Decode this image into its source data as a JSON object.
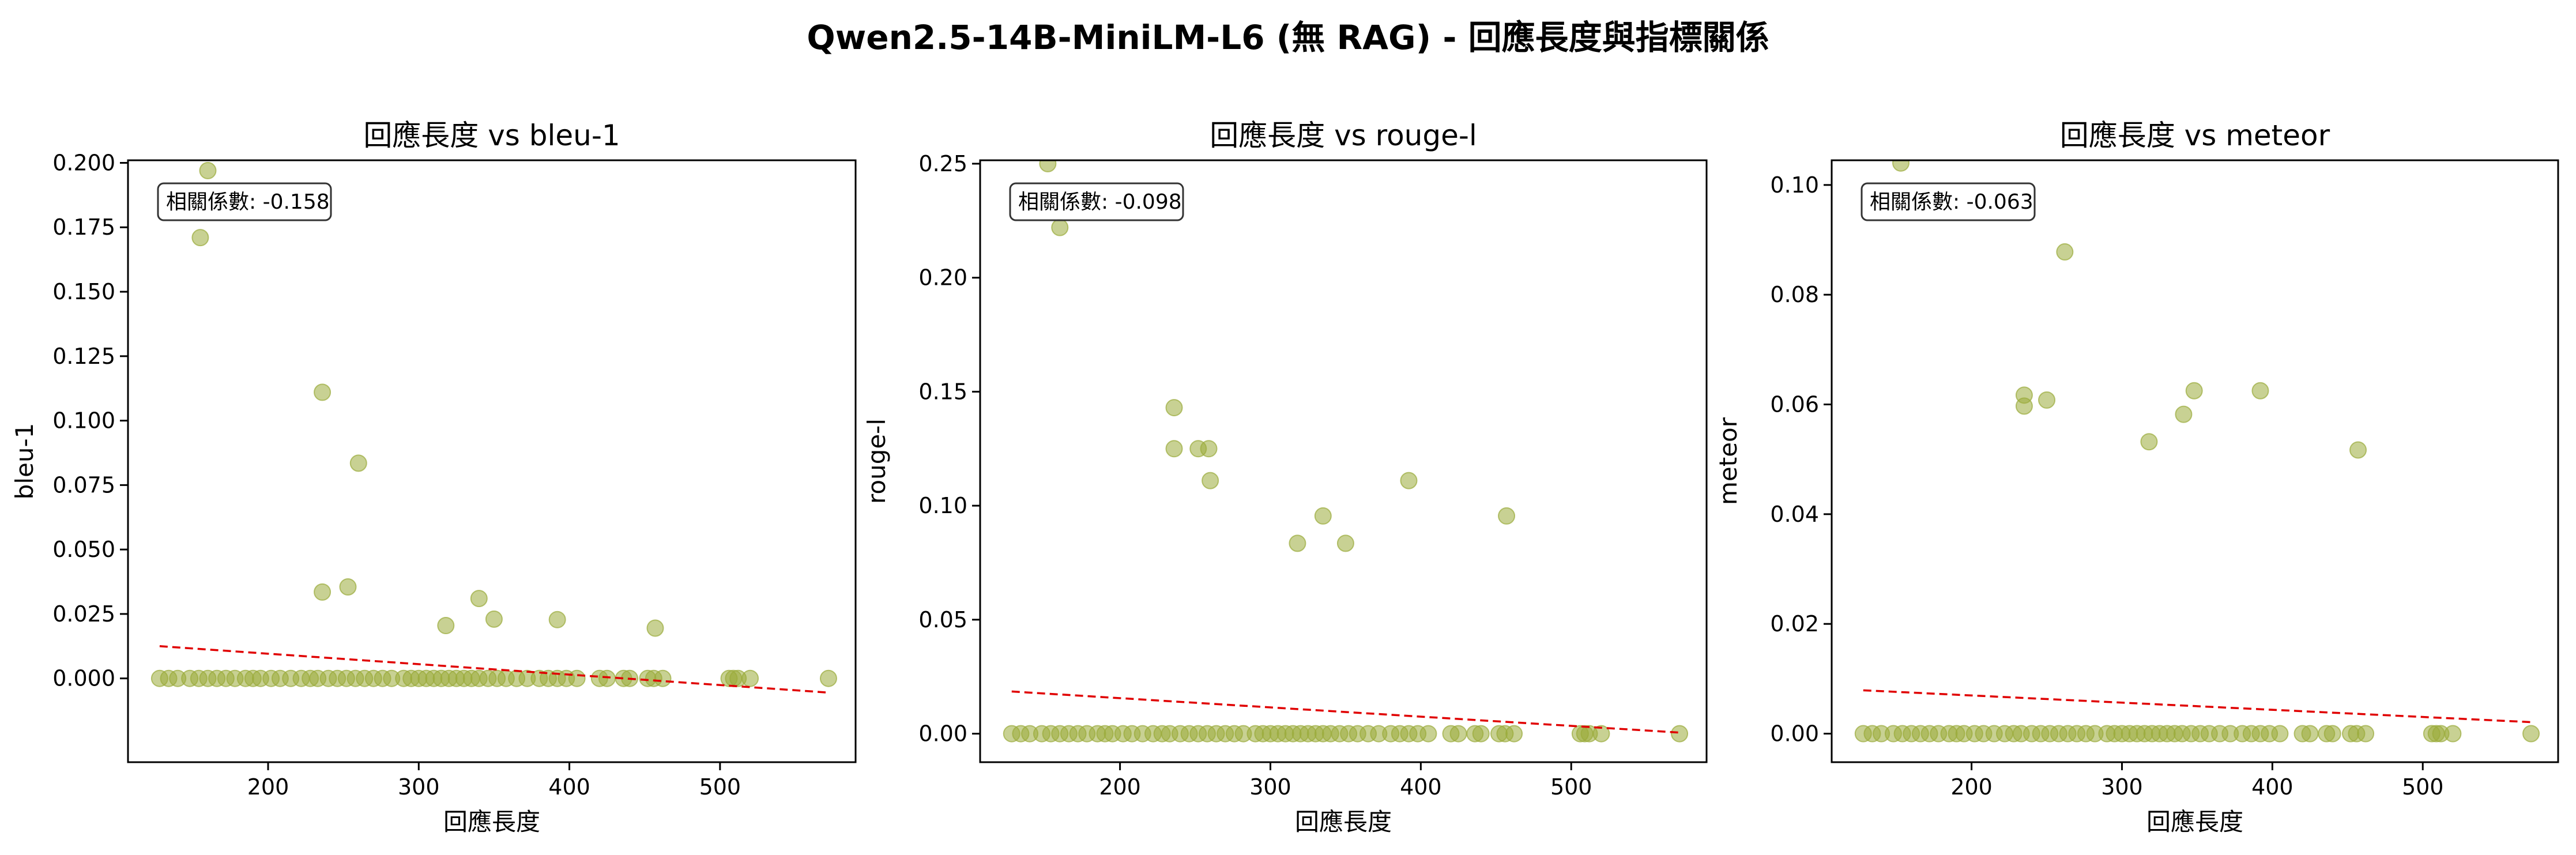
{
  "suptitle": "Qwen2.5-14B-MiniLM-L6 (無 RAG) - 回應長度與指標關係",
  "colors": {
    "points": "#9aab3a",
    "trend": "#e00000",
    "frame": "#000000"
  },
  "chart_data": [
    {
      "type": "scatter",
      "title": "回應長度 vs bleu-1",
      "xlabel": "回應長度",
      "ylabel": "bleu-1",
      "xlim": [
        107,
        590
      ],
      "ylim": [
        -0.0325,
        0.201
      ],
      "xticks": [
        200,
        300,
        400,
        500
      ],
      "yticks": [
        0.0,
        0.025,
        0.05,
        0.075,
        0.1,
        0.125,
        0.15,
        0.175,
        0.2
      ],
      "ytick_labels": [
        "0.000",
        "0.025",
        "0.050",
        "0.075",
        "0.100",
        "0.125",
        "0.150",
        "0.175",
        "0.200"
      ],
      "annotation": "相關係數: -0.158",
      "trend": {
        "x": [
          128,
          572
        ],
        "y": [
          0.0125,
          -0.0055
        ]
      },
      "points": [
        [
          128,
          0
        ],
        [
          134,
          0
        ],
        [
          140,
          0
        ],
        [
          148,
          0
        ],
        [
          154,
          0
        ],
        [
          160,
          0
        ],
        [
          166,
          0
        ],
        [
          172,
          0
        ],
        [
          178,
          0
        ],
        [
          185,
          0
        ],
        [
          190,
          0
        ],
        [
          195,
          0
        ],
        [
          202,
          0
        ],
        [
          208,
          0
        ],
        [
          215,
          0
        ],
        [
          222,
          0
        ],
        [
          228,
          0
        ],
        [
          233,
          0
        ],
        [
          240,
          0
        ],
        [
          246,
          0
        ],
        [
          252,
          0
        ],
        [
          258,
          0
        ],
        [
          264,
          0
        ],
        [
          270,
          0
        ],
        [
          276,
          0
        ],
        [
          282,
          0
        ],
        [
          290,
          0
        ],
        [
          295,
          0
        ],
        [
          300,
          0
        ],
        [
          305,
          0
        ],
        [
          310,
          0
        ],
        [
          315,
          0
        ],
        [
          320,
          0
        ],
        [
          325,
          0
        ],
        [
          330,
          0
        ],
        [
          335,
          0
        ],
        [
          340,
          0
        ],
        [
          346,
          0
        ],
        [
          352,
          0
        ],
        [
          358,
          0
        ],
        [
          365,
          0
        ],
        [
          372,
          0
        ],
        [
          380,
          0
        ],
        [
          386,
          0
        ],
        [
          392,
          0
        ],
        [
          398,
          0
        ],
        [
          405,
          0
        ],
        [
          420,
          0
        ],
        [
          425,
          0
        ],
        [
          436,
          0
        ],
        [
          440,
          0
        ],
        [
          452,
          0
        ],
        [
          456,
          0
        ],
        [
          462,
          0
        ],
        [
          506,
          0
        ],
        [
          509,
          0
        ],
        [
          512,
          0
        ],
        [
          520,
          0
        ],
        [
          572,
          0
        ],
        [
          155,
          0.171
        ],
        [
          160,
          0.197
        ],
        [
          236,
          0.111
        ],
        [
          236,
          0.0335
        ],
        [
          253,
          0.0355
        ],
        [
          260,
          0.0835
        ],
        [
          318,
          0.0205
        ],
        [
          340,
          0.031
        ],
        [
          350,
          0.023
        ],
        [
          392,
          0.0228
        ],
        [
          457,
          0.0195
        ]
      ]
    },
    {
      "type": "scatter",
      "title": "回應長度 vs rouge-l",
      "xlabel": "回應長度",
      "ylabel": "rouge-l",
      "xlim": [
        107,
        590
      ],
      "ylim": [
        -0.0125,
        0.2515
      ],
      "xticks": [
        200,
        300,
        400,
        500
      ],
      "yticks": [
        0.0,
        0.05,
        0.1,
        0.15,
        0.2,
        0.25
      ],
      "ytick_labels": [
        "0.00",
        "0.05",
        "0.10",
        "0.15",
        "0.20",
        "0.25"
      ],
      "annotation": "相關係數: -0.098",
      "trend": {
        "x": [
          128,
          572
        ],
        "y": [
          0.0185,
          0.0005
        ]
      },
      "points": [
        [
          128,
          0
        ],
        [
          134,
          0
        ],
        [
          140,
          0
        ],
        [
          148,
          0
        ],
        [
          154,
          0
        ],
        [
          160,
          0
        ],
        [
          166,
          0
        ],
        [
          172,
          0
        ],
        [
          178,
          0
        ],
        [
          185,
          0
        ],
        [
          190,
          0
        ],
        [
          195,
          0
        ],
        [
          202,
          0
        ],
        [
          208,
          0
        ],
        [
          215,
          0
        ],
        [
          222,
          0
        ],
        [
          228,
          0
        ],
        [
          233,
          0
        ],
        [
          240,
          0
        ],
        [
          246,
          0
        ],
        [
          252,
          0
        ],
        [
          258,
          0
        ],
        [
          264,
          0
        ],
        [
          270,
          0
        ],
        [
          276,
          0
        ],
        [
          282,
          0
        ],
        [
          290,
          0
        ],
        [
          295,
          0
        ],
        [
          300,
          0
        ],
        [
          305,
          0
        ],
        [
          310,
          0
        ],
        [
          315,
          0
        ],
        [
          320,
          0
        ],
        [
          325,
          0
        ],
        [
          330,
          0
        ],
        [
          335,
          0
        ],
        [
          340,
          0
        ],
        [
          346,
          0
        ],
        [
          352,
          0
        ],
        [
          358,
          0
        ],
        [
          365,
          0
        ],
        [
          372,
          0
        ],
        [
          380,
          0
        ],
        [
          386,
          0
        ],
        [
          392,
          0
        ],
        [
          398,
          0
        ],
        [
          405,
          0
        ],
        [
          420,
          0
        ],
        [
          425,
          0
        ],
        [
          436,
          0
        ],
        [
          440,
          0
        ],
        [
          452,
          0
        ],
        [
          456,
          0
        ],
        [
          462,
          0
        ],
        [
          506,
          0
        ],
        [
          509,
          0
        ],
        [
          512,
          0
        ],
        [
          520,
          0
        ],
        [
          572,
          0
        ],
        [
          152,
          0.25
        ],
        [
          160,
          0.222
        ],
        [
          236,
          0.143
        ],
        [
          236,
          0.125
        ],
        [
          252,
          0.125
        ],
        [
          259,
          0.125
        ],
        [
          260,
          0.111
        ],
        [
          318,
          0.0835
        ],
        [
          335,
          0.0955
        ],
        [
          350,
          0.0835
        ],
        [
          392,
          0.111
        ],
        [
          457,
          0.0955
        ]
      ]
    },
    {
      "type": "scatter",
      "title": "回應長度 vs meteor",
      "xlabel": "回應長度",
      "ylabel": "meteor",
      "xlim": [
        107,
        590
      ],
      "ylim": [
        -0.0052,
        0.1045
      ],
      "xticks": [
        200,
        300,
        400,
        500
      ],
      "yticks": [
        0.0,
        0.02,
        0.04,
        0.06,
        0.08,
        0.1
      ],
      "ytick_labels": [
        "0.00",
        "0.02",
        "0.04",
        "0.06",
        "0.08",
        "0.10"
      ],
      "annotation": "相關係數: -0.063",
      "trend": {
        "x": [
          128,
          572
        ],
        "y": [
          0.0079,
          0.0021
        ]
      },
      "points": [
        [
          128,
          0
        ],
        [
          134,
          0
        ],
        [
          140,
          0
        ],
        [
          148,
          0
        ],
        [
          154,
          0
        ],
        [
          160,
          0
        ],
        [
          166,
          0
        ],
        [
          172,
          0
        ],
        [
          178,
          0
        ],
        [
          185,
          0
        ],
        [
          190,
          0
        ],
        [
          195,
          0
        ],
        [
          202,
          0
        ],
        [
          208,
          0
        ],
        [
          215,
          0
        ],
        [
          222,
          0
        ],
        [
          228,
          0
        ],
        [
          233,
          0
        ],
        [
          240,
          0
        ],
        [
          246,
          0
        ],
        [
          252,
          0
        ],
        [
          258,
          0
        ],
        [
          264,
          0
        ],
        [
          270,
          0
        ],
        [
          276,
          0
        ],
        [
          282,
          0
        ],
        [
          290,
          0
        ],
        [
          295,
          0
        ],
        [
          300,
          0
        ],
        [
          305,
          0
        ],
        [
          310,
          0
        ],
        [
          315,
          0
        ],
        [
          320,
          0
        ],
        [
          325,
          0
        ],
        [
          330,
          0
        ],
        [
          335,
          0
        ],
        [
          340,
          0
        ],
        [
          346,
          0
        ],
        [
          352,
          0
        ],
        [
          358,
          0
        ],
        [
          365,
          0
        ],
        [
          372,
          0
        ],
        [
          380,
          0
        ],
        [
          386,
          0
        ],
        [
          392,
          0
        ],
        [
          398,
          0
        ],
        [
          405,
          0
        ],
        [
          420,
          0
        ],
        [
          425,
          0
        ],
        [
          436,
          0
        ],
        [
          440,
          0
        ],
        [
          452,
          0
        ],
        [
          456,
          0
        ],
        [
          462,
          0
        ],
        [
          506,
          0
        ],
        [
          509,
          0
        ],
        [
          512,
          0
        ],
        [
          520,
          0
        ],
        [
          572,
          0
        ],
        [
          153,
          0.104
        ],
        [
          235,
          0.0617
        ],
        [
          235,
          0.0597
        ],
        [
          250,
          0.0608
        ],
        [
          262,
          0.0878
        ],
        [
          318,
          0.0532
        ],
        [
          341,
          0.0582
        ],
        [
          348,
          0.0625
        ],
        [
          392,
          0.0625
        ],
        [
          457,
          0.0517
        ]
      ]
    }
  ]
}
